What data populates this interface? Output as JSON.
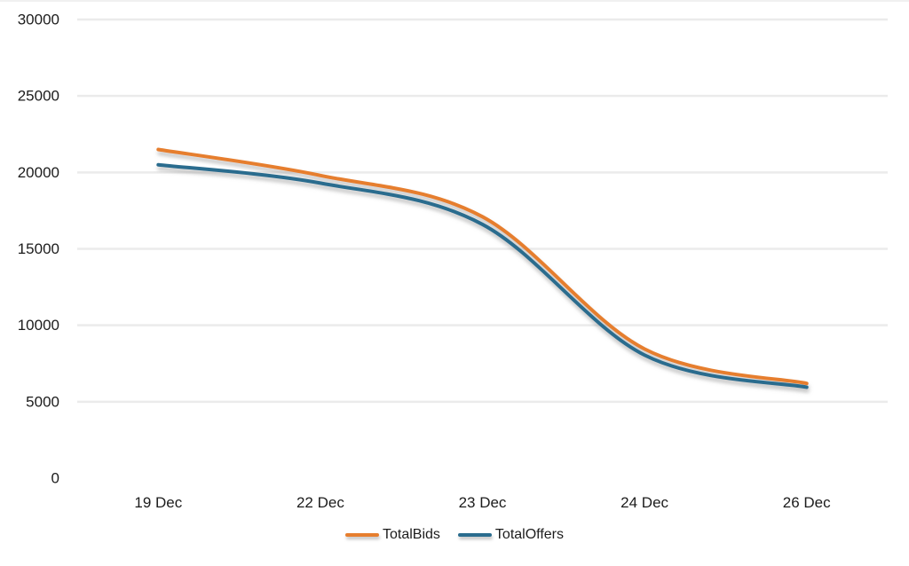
{
  "chart_data": {
    "type": "line",
    "smoothed": true,
    "title": "",
    "xlabel": "",
    "ylabel": "",
    "categories": [
      "19 Dec",
      "22 Dec",
      "23 Dec",
      "24 Dec",
      "26 Dec"
    ],
    "series": [
      {
        "name": "TotalBids",
        "color": "#E67E2E",
        "values": [
          21500,
          19800,
          17100,
          8450,
          6200
        ]
      },
      {
        "name": "TotalOffers",
        "color": "#2A6C8E",
        "values": [
          20500,
          19300,
          16600,
          8050,
          5950
        ]
      }
    ],
    "y_axis": {
      "min": 0,
      "max": 30000,
      "tick_step": 5000,
      "tick_labels": [
        "0",
        "5000",
        "10000",
        "15000",
        "20000",
        "25000",
        "30000"
      ]
    },
    "grid": true,
    "gridline_color": "#EBEBEB",
    "text_color": "#1C1C1C",
    "background_color": "#FFFFFF",
    "legend_position": "bottom",
    "line_width": 4,
    "line_shadow": true
  }
}
